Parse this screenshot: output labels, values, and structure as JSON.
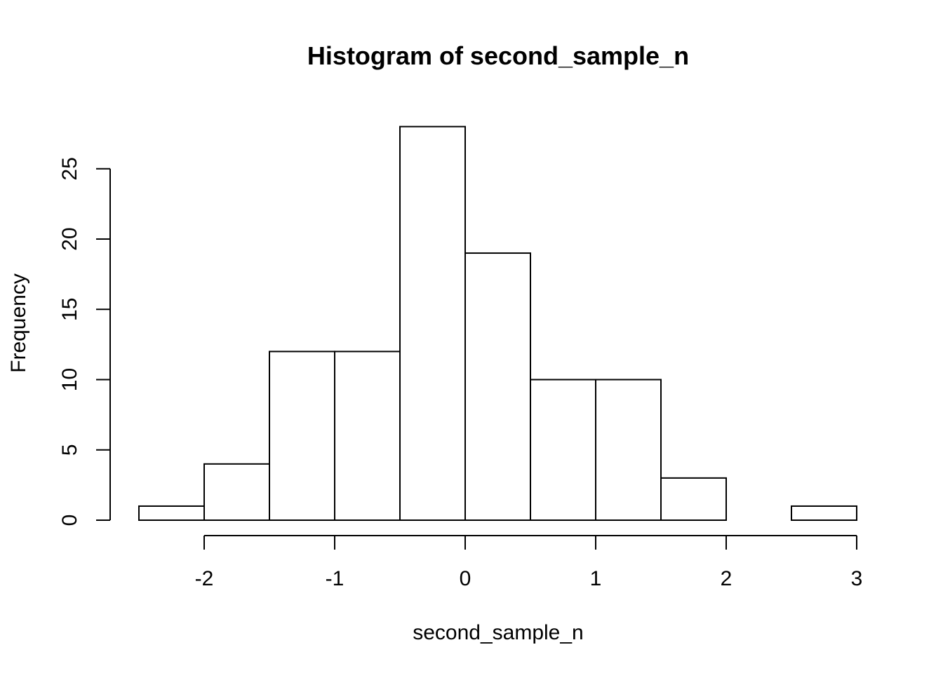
{
  "chart_data": {
    "type": "bar",
    "title": "Histogram of second_sample_n",
    "xlabel": "second_sample_n",
    "ylabel": "Frequency",
    "bins": [
      {
        "from": -2.5,
        "to": -2.0,
        "count": 1
      },
      {
        "from": -2.0,
        "to": -1.5,
        "count": 4
      },
      {
        "from": -1.5,
        "to": -1.0,
        "count": 12
      },
      {
        "from": -1.0,
        "to": -0.5,
        "count": 12
      },
      {
        "from": -0.5,
        "to": 0.0,
        "count": 28
      },
      {
        "from": 0.0,
        "to": 0.5,
        "count": 19
      },
      {
        "from": 0.5,
        "to": 1.0,
        "count": 10
      },
      {
        "from": 1.0,
        "to": 1.5,
        "count": 10
      },
      {
        "from": 1.5,
        "to": 2.0,
        "count": 3
      },
      {
        "from": 2.0,
        "to": 2.5,
        "count": 0
      },
      {
        "from": 2.5,
        "to": 3.0,
        "count": 1
      }
    ],
    "xticks": [
      -2,
      -1,
      0,
      1,
      2,
      3
    ],
    "xtick_labels": [
      "-2",
      "-1",
      "0",
      "1",
      "2",
      "3"
    ],
    "yticks": [
      0,
      5,
      10,
      15,
      20,
      25
    ],
    "ytick_labels": [
      "0",
      "5",
      "10",
      "15",
      "20",
      "25"
    ],
    "xlim": [
      -2.5,
      3.0
    ],
    "ylim": [
      0,
      28
    ],
    "grid": false,
    "bar_fill": "#ffffff",
    "bar_stroke": "#000000"
  }
}
